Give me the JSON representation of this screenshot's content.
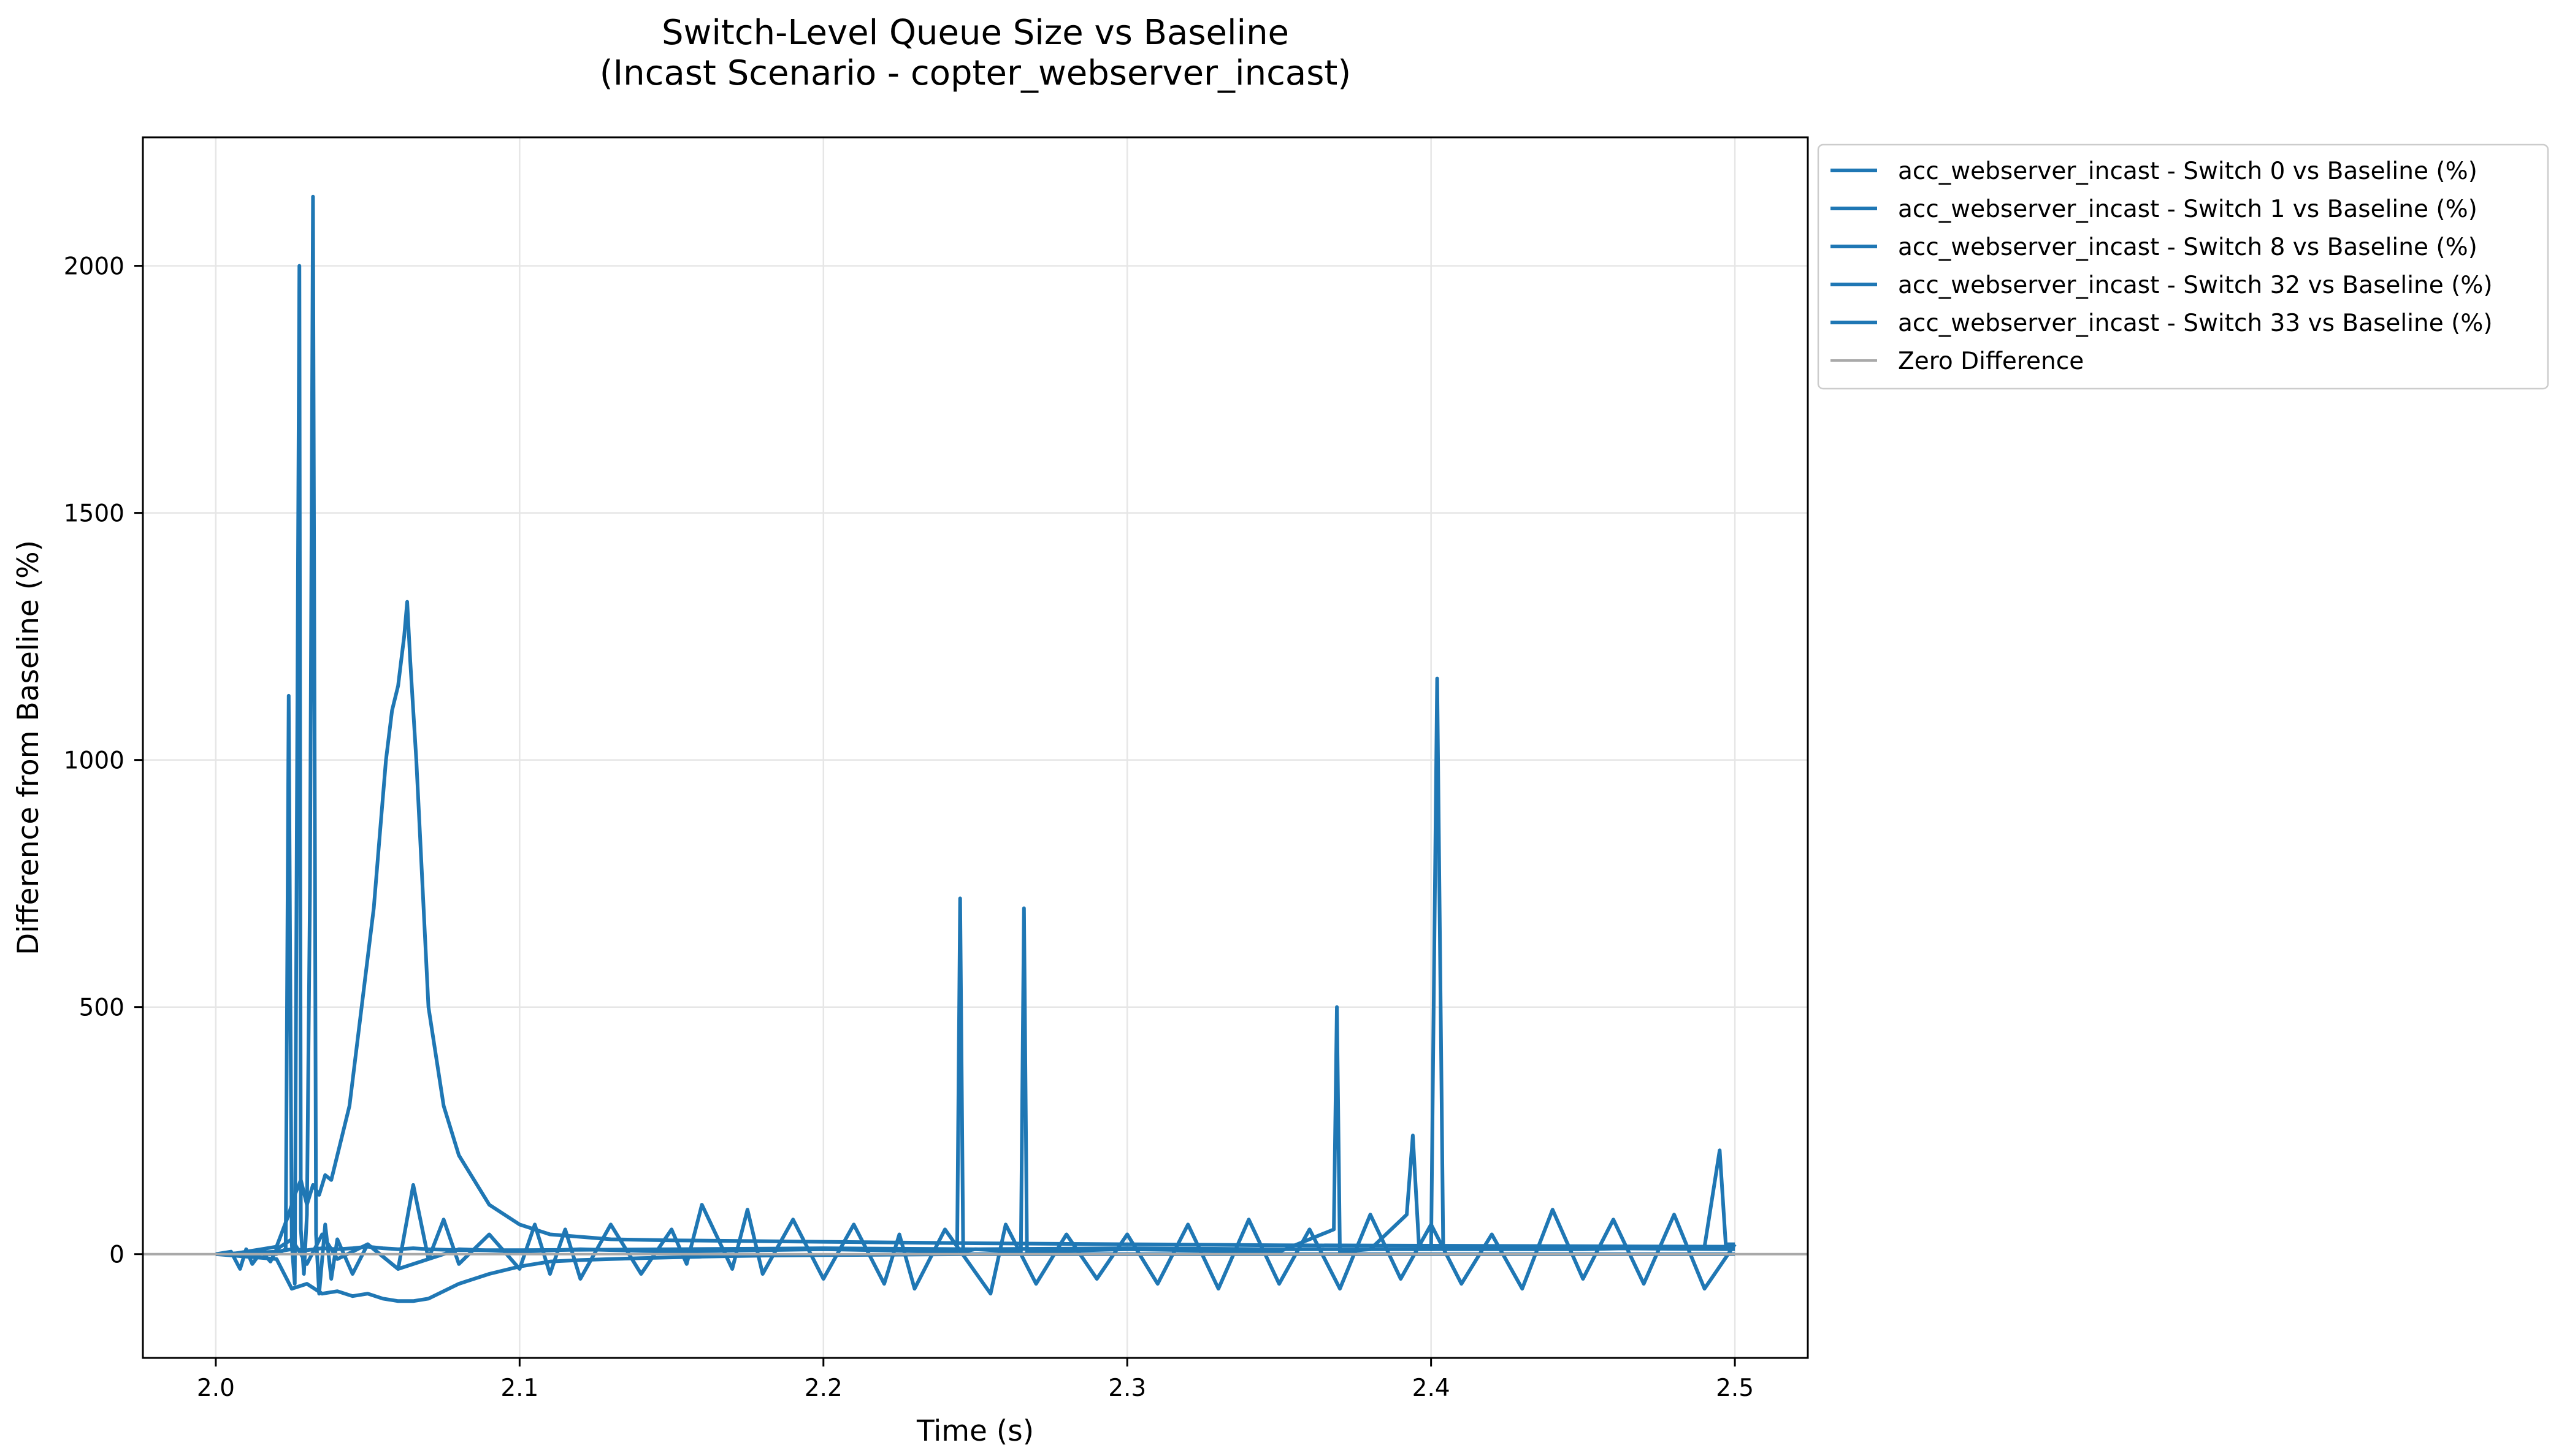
{
  "chart_data": {
    "type": "line",
    "title": "Switch-Level Queue Size vs Baseline",
    "subtitle": "(Incast Scenario - copter_webserver_incast)",
    "xlabel": "Time (s)",
    "ylabel": "Difference from Baseline (%)",
    "xlim": [
      1.976,
      2.524
    ],
    "ylim": [
      -210,
      2260
    ],
    "xticks": [
      2.0,
      2.1,
      2.2,
      2.3,
      2.4,
      2.5
    ],
    "xtick_labels": [
      "2.0",
      "2.1",
      "2.2",
      "2.3",
      "2.4",
      "2.5"
    ],
    "yticks": [
      0,
      500,
      1000,
      1500,
      2000
    ],
    "ytick_labels": [
      "0",
      "500",
      "1000",
      "1500",
      "2000"
    ],
    "grid": true,
    "legend_position": "outside-right-top",
    "series_color": "#1f77b4",
    "zero_line_color": "#a9a9a9",
    "series": [
      {
        "name": "acc_webserver_incast - Switch 0 vs Baseline (%)",
        "x": [
          2.0,
          2.005,
          2.01,
          2.015,
          2.02,
          2.024,
          2.026,
          2.028,
          2.03,
          2.032,
          2.034,
          2.036,
          2.038,
          2.04,
          2.042,
          2.044,
          2.046,
          2.048,
          2.05,
          2.052,
          2.054,
          2.056,
          2.058,
          2.06,
          2.061,
          2.062,
          2.063,
          2.064,
          2.065,
          2.066,
          2.068,
          2.07,
          2.075,
          2.08,
          2.09,
          2.1,
          2.11,
          2.13,
          2.15,
          2.2,
          2.25,
          2.3,
          2.35,
          2.4,
          2.45,
          2.5
        ],
        "y": [
          0,
          0,
          5,
          10,
          15,
          80,
          120,
          150,
          100,
          140,
          120,
          160,
          150,
          200,
          250,
          300,
          400,
          500,
          600,
          700,
          850,
          1000,
          1100,
          1150,
          1200,
          1250,
          1320,
          1200,
          1100,
          1000,
          750,
          500,
          300,
          200,
          100,
          60,
          40,
          30,
          28,
          25,
          22,
          20,
          18,
          17,
          16,
          15
        ]
      },
      {
        "name": "acc_webserver_incast - Switch 1 vs Baseline (%)",
        "x": [
          2.0,
          2.01,
          2.02,
          2.023,
          2.024,
          2.025,
          2.026,
          2.0275,
          2.028,
          2.029,
          2.03,
          2.031,
          2.032,
          2.033,
          2.034,
          2.036,
          2.038,
          2.04,
          2.045,
          2.05,
          2.06,
          2.08,
          2.1,
          2.12,
          2.15,
          2.2,
          2.244,
          2.245,
          2.246,
          2.25,
          2.265,
          2.266,
          2.267,
          2.3,
          2.35,
          2.368,
          2.369,
          2.37,
          2.38,
          2.392,
          2.394,
          2.396,
          2.4,
          2.402,
          2.404,
          2.41,
          2.45,
          2.49,
          2.495,
          2.497,
          2.5
        ],
        "y": [
          0,
          0,
          0,
          10,
          1130,
          20,
          -60,
          2000,
          50,
          -40,
          80,
          740,
          2140,
          40,
          -80,
          60,
          -50,
          30,
          -40,
          20,
          -30,
          10,
          5,
          10,
          5,
          10,
          5,
          720,
          5,
          10,
          5,
          700,
          5,
          10,
          5,
          50,
          500,
          5,
          10,
          80,
          240,
          20,
          10,
          1165,
          10,
          10,
          10,
          15,
          210,
          20,
          20
        ]
      },
      {
        "name": "acc_webserver_incast - Switch 8 vs Baseline (%)",
        "x": [
          2.0,
          2.02,
          2.025,
          2.03,
          2.035,
          2.04,
          2.045,
          2.05,
          2.055,
          2.06,
          2.065,
          2.07,
          2.08,
          2.09,
          2.1,
          2.11,
          2.12,
          2.13,
          2.14,
          2.16,
          2.18,
          2.2,
          2.25,
          2.3,
          2.35,
          2.4,
          2.45,
          2.5
        ],
        "y": [
          0,
          -10,
          -70,
          -60,
          -80,
          -75,
          -85,
          -80,
          -90,
          -95,
          -95,
          -90,
          -60,
          -40,
          -25,
          -15,
          -12,
          -10,
          -8,
          -5,
          -3,
          -2,
          0,
          0,
          0,
          0,
          0,
          0
        ]
      },
      {
        "name": "acc_webserver_incast - Switch 32 vs Baseline (%)",
        "x": [
          2.0,
          2.005,
          2.008,
          2.01,
          2.012,
          2.015,
          2.018,
          2.02,
          2.025,
          2.03,
          2.035,
          2.04,
          2.05,
          2.06,
          2.065,
          2.07,
          2.075,
          2.08,
          2.09,
          2.1,
          2.105,
          2.11,
          2.115,
          2.12,
          2.13,
          2.14,
          2.15,
          2.155,
          2.16,
          2.17,
          2.175,
          2.18,
          2.19,
          2.2,
          2.21,
          2.22,
          2.225,
          2.23,
          2.24,
          2.255,
          2.26,
          2.27,
          2.28,
          2.29,
          2.3,
          2.31,
          2.32,
          2.33,
          2.34,
          2.35,
          2.36,
          2.37,
          2.38,
          2.39,
          2.4,
          2.41,
          2.42,
          2.43,
          2.44,
          2.45,
          2.46,
          2.47,
          2.48,
          2.49,
          2.5
        ],
        "y": [
          0,
          5,
          -30,
          10,
          -20,
          5,
          -15,
          10,
          30,
          -20,
          40,
          -10,
          20,
          -30,
          140,
          -10,
          70,
          -20,
          40,
          -30,
          60,
          -40,
          50,
          -50,
          60,
          -40,
          50,
          -20,
          100,
          -30,
          90,
          -40,
          70,
          -50,
          60,
          -60,
          40,
          -70,
          50,
          -80,
          60,
          -60,
          40,
          -50,
          40,
          -60,
          60,
          -70,
          70,
          -60,
          50,
          -70,
          80,
          -50,
          60,
          -60,
          40,
          -70,
          90,
          -50,
          70,
          -60,
          80,
          -70,
          20
        ]
      },
      {
        "name": "acc_webserver_incast - Switch 33 vs Baseline (%)",
        "x": [
          2.0,
          2.02,
          2.025,
          2.03,
          2.035,
          2.04,
          2.045,
          2.05,
          2.055,
          2.06,
          2.065,
          2.07,
          2.08,
          2.1,
          2.15,
          2.2,
          2.25,
          2.3,
          2.35,
          2.4,
          2.45,
          2.5
        ],
        "y": [
          0,
          5,
          10,
          8,
          12,
          10,
          12,
          15,
          12,
          10,
          12,
          10,
          8,
          8,
          10,
          12,
          10,
          12,
          10,
          10,
          12,
          10
        ]
      },
      {
        "name": "Zero Difference",
        "x": [
          1.976,
          2.524
        ],
        "y": [
          0,
          0
        ]
      }
    ]
  }
}
